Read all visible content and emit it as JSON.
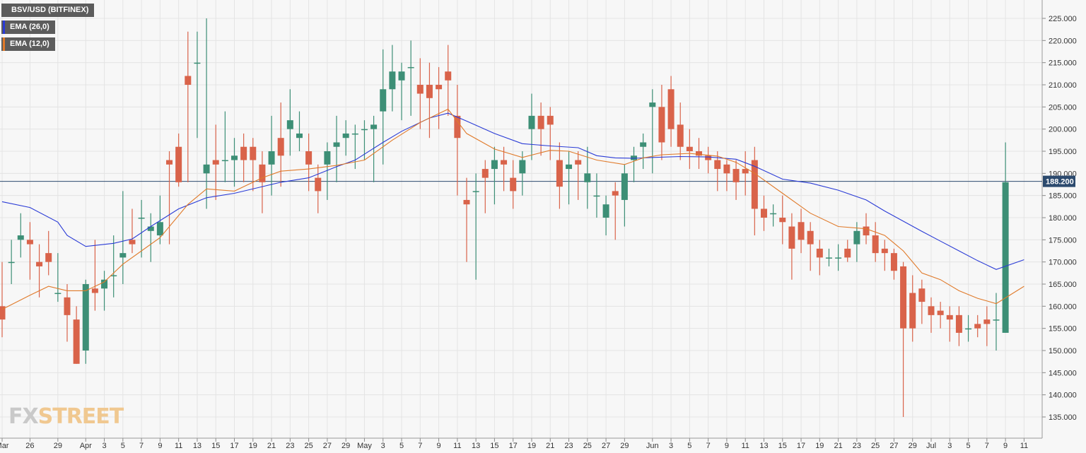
{
  "legend": {
    "title": "BSV/USD (BITFINEX)",
    "ema26": "EMA (26,0)",
    "ema12": "EMA (12,0)"
  },
  "watermark": {
    "part1": "FX",
    "part2": "STREET"
  },
  "colors": {
    "up": "#3d8f76",
    "down": "#d9634a",
    "ema26": "#2a3bd6",
    "ema12": "#e07a2a",
    "price_line": "#2c4a6e",
    "grid": "#e4e4e4",
    "background": "#f7f7f7"
  },
  "chart_data": {
    "type": "candlestick",
    "y_axis": {
      "ticks": [
        "135.000",
        "140.000",
        "145.000",
        "150.000",
        "155.000",
        "160.000",
        "165.000",
        "170.000",
        "175.000",
        "180.000",
        "185.000",
        "190.000",
        "195.000",
        "200.000",
        "205.000",
        "210.000",
        "215.000",
        "220.000",
        "225.000"
      ],
      "ylim": [
        134,
        229
      ]
    },
    "x_axis": {
      "ticks": [
        {
          "label": "Mar",
          "i": 0
        },
        {
          "label": "26",
          "i": 3
        },
        {
          "label": "29",
          "i": 6
        },
        {
          "label": "Apr",
          "i": 9
        },
        {
          "label": "3",
          "i": 11
        },
        {
          "label": "5",
          "i": 13
        },
        {
          "label": "7",
          "i": 15
        },
        {
          "label": "9",
          "i": 17
        },
        {
          "label": "11",
          "i": 19
        },
        {
          "label": "13",
          "i": 21
        },
        {
          "label": "15",
          "i": 23
        },
        {
          "label": "17",
          "i": 25
        },
        {
          "label": "19",
          "i": 27
        },
        {
          "label": "21",
          "i": 29
        },
        {
          "label": "23",
          "i": 31
        },
        {
          "label": "25",
          "i": 33
        },
        {
          "label": "27",
          "i": 35
        },
        {
          "label": "29",
          "i": 37
        },
        {
          "label": "May",
          "i": 39
        },
        {
          "label": "3",
          "i": 41
        },
        {
          "label": "5",
          "i": 43
        },
        {
          "label": "7",
          "i": 45
        },
        {
          "label": "9",
          "i": 47
        },
        {
          "label": "11",
          "i": 49
        },
        {
          "label": "13",
          "i": 51
        },
        {
          "label": "15",
          "i": 53
        },
        {
          "label": "17",
          "i": 55
        },
        {
          "label": "19",
          "i": 57
        },
        {
          "label": "21",
          "i": 59
        },
        {
          "label": "23",
          "i": 61
        },
        {
          "label": "25",
          "i": 63
        },
        {
          "label": "27",
          "i": 65
        },
        {
          "label": "29",
          "i": 67
        },
        {
          "label": "Jun",
          "i": 70
        },
        {
          "label": "3",
          "i": 72
        },
        {
          "label": "5",
          "i": 74
        },
        {
          "label": "7",
          "i": 76
        },
        {
          "label": "9",
          "i": 78
        },
        {
          "label": "11",
          "i": 80
        },
        {
          "label": "13",
          "i": 82
        },
        {
          "label": "15",
          "i": 84
        },
        {
          "label": "17",
          "i": 86
        },
        {
          "label": "19",
          "i": 88
        },
        {
          "label": "21",
          "i": 90
        },
        {
          "label": "23",
          "i": 92
        },
        {
          "label": "25",
          "i": 94
        },
        {
          "label": "27",
          "i": 96
        },
        {
          "label": "29",
          "i": 98
        },
        {
          "label": "Jul",
          "i": 100
        },
        {
          "label": "3",
          "i": 102
        },
        {
          "label": "5",
          "i": 104
        },
        {
          "label": "7",
          "i": 106
        },
        {
          "label": "9",
          "i": 108
        },
        {
          "label": "11",
          "i": 110
        }
      ]
    },
    "last_price": 188.2,
    "last_price_label": "188.200",
    "candles": [
      [
        160,
        170,
        153,
        157
      ],
      [
        170,
        175,
        165,
        170
      ],
      [
        175,
        181,
        171,
        176
      ],
      [
        175,
        179,
        166,
        174
      ],
      [
        170,
        174,
        162,
        169
      ],
      [
        172,
        177,
        167,
        170
      ],
      [
        163,
        172,
        161,
        163
      ],
      [
        162,
        165,
        152,
        158
      ],
      [
        157,
        160,
        147,
        147
      ],
      [
        150,
        166,
        147,
        165
      ],
      [
        164,
        175,
        159,
        163
      ],
      [
        164,
        168,
        159,
        166
      ],
      [
        167,
        176,
        162,
        167
      ],
      [
        171,
        186,
        165,
        172
      ],
      [
        175,
        182,
        172,
        174
      ],
      [
        180,
        184,
        171,
        180
      ],
      [
        177,
        181,
        170,
        178
      ],
      [
        176,
        185,
        174,
        179
      ],
      [
        193,
        195,
        174,
        192
      ],
      [
        196,
        199,
        187,
        188
      ],
      [
        212,
        222,
        188,
        210
      ],
      [
        215,
        222,
        198,
        215
      ],
      [
        190,
        225,
        182,
        192
      ],
      [
        193,
        201,
        184,
        192
      ],
      [
        193,
        204,
        188,
        193
      ],
      [
        193,
        198,
        187,
        194
      ],
      [
        196,
        199,
        188,
        193
      ],
      [
        196,
        198,
        186,
        193
      ],
      [
        192,
        195,
        181,
        188
      ],
      [
        192,
        203,
        185,
        195
      ],
      [
        198,
        206,
        187,
        194
      ],
      [
        200,
        209,
        194,
        202
      ],
      [
        198,
        204,
        195,
        199
      ],
      [
        195,
        199,
        186,
        192
      ],
      [
        189,
        192,
        181,
        186
      ],
      [
        192,
        197,
        184,
        195
      ],
      [
        196,
        203,
        188,
        197
      ],
      [
        198,
        202,
        194,
        199
      ],
      [
        199,
        201,
        191,
        199
      ],
      [
        200,
        202,
        193,
        200
      ],
      [
        200,
        203,
        188,
        201
      ],
      [
        204,
        218,
        192,
        209
      ],
      [
        209,
        219,
        204,
        213
      ],
      [
        211,
        215,
        202,
        213
      ],
      [
        214,
        220,
        203,
        214
      ],
      [
        210,
        216,
        200,
        208
      ],
      [
        210,
        215,
        198,
        207
      ],
      [
        210,
        214,
        200,
        209
      ],
      [
        213,
        219,
        203,
        211
      ],
      [
        203,
        210,
        185,
        198
      ],
      [
        184,
        189,
        170,
        183
      ],
      [
        186,
        190,
        166,
        186
      ],
      [
        191,
        193,
        181,
        189
      ],
      [
        191,
        196,
        183,
        193
      ],
      [
        193,
        196,
        186,
        192
      ],
      [
        189,
        193,
        182,
        186
      ],
      [
        190,
        195,
        185,
        193
      ],
      [
        200,
        208,
        193,
        203
      ],
      [
        203,
        206,
        194,
        200
      ],
      [
        203,
        205,
        193,
        201
      ],
      [
        193,
        197,
        182,
        187
      ],
      [
        191,
        195,
        183,
        192
      ],
      [
        193,
        195,
        184,
        192
      ],
      [
        188,
        196,
        182,
        190
      ],
      [
        185,
        190,
        180,
        185
      ],
      [
        180,
        185,
        176,
        183
      ],
      [
        186,
        188,
        175,
        185
      ],
      [
        184,
        192,
        178,
        190
      ],
      [
        193,
        196,
        188,
        194
      ],
      [
        196,
        199,
        191,
        197
      ],
      [
        205,
        209,
        190,
        206
      ],
      [
        205,
        210,
        193,
        197
      ],
      [
        209,
        212,
        196,
        200
      ],
      [
        201,
        206,
        193,
        196
      ],
      [
        196,
        200,
        191,
        195
      ],
      [
        195,
        198,
        191,
        194
      ],
      [
        194,
        196,
        190,
        193
      ],
      [
        193,
        195,
        186,
        191
      ],
      [
        192,
        193,
        186,
        190
      ],
      [
        191,
        193,
        184,
        188
      ],
      [
        191,
        195,
        185,
        190
      ],
      [
        193,
        196,
        176,
        182
      ],
      [
        182,
        185,
        177,
        180
      ],
      [
        181,
        183,
        178,
        181
      ],
      [
        180,
        185,
        174,
        179
      ],
      [
        178,
        181,
        166,
        173
      ],
      [
        179,
        182,
        172,
        175
      ],
      [
        177,
        179,
        168,
        174
      ],
      [
        173,
        175,
        167,
        171
      ],
      [
        171,
        173,
        169,
        171
      ],
      [
        171,
        174,
        168,
        171
      ],
      [
        173,
        175,
        170,
        171
      ],
      [
        174,
        179,
        170,
        177
      ],
      [
        178,
        181,
        174,
        176
      ],
      [
        176,
        179,
        170,
        172
      ],
      [
        173,
        175,
        168,
        172
      ],
      [
        172,
        173,
        166,
        168
      ],
      [
        169,
        170,
        135,
        155
      ],
      [
        163,
        167,
        152,
        155
      ],
      [
        164,
        166,
        156,
        161
      ],
      [
        160,
        162,
        154,
        158
      ],
      [
        159,
        161,
        155,
        158
      ],
      [
        158,
        160,
        152,
        157
      ],
      [
        158,
        160,
        151,
        154
      ],
      [
        155,
        158,
        152,
        155
      ],
      [
        156,
        158,
        153,
        155
      ],
      [
        157,
        160,
        151,
        156
      ],
      [
        157,
        163,
        150,
        157
      ],
      [
        154,
        197,
        154,
        188
      ]
    ],
    "ema26": [
      [
        0,
        183.6
      ],
      [
        3,
        182.3
      ],
      [
        6,
        179.0
      ],
      [
        7,
        176.0
      ],
      [
        9,
        173.5
      ],
      [
        12,
        174.2
      ],
      [
        14,
        175.2
      ],
      [
        16,
        178.0
      ],
      [
        19,
        182.0
      ],
      [
        22,
        184.5
      ],
      [
        25,
        185.5
      ],
      [
        28,
        187.0
      ],
      [
        30,
        188.0
      ],
      [
        33,
        189.0
      ],
      [
        36,
        191.5
      ],
      [
        38,
        193.0
      ],
      [
        41,
        197.0
      ],
      [
        43,
        199.5
      ],
      [
        46,
        202.5
      ],
      [
        48,
        203.6
      ],
      [
        50,
        201.8
      ],
      [
        53,
        199.0
      ],
      [
        56,
        196.7
      ],
      [
        59,
        196.2
      ],
      [
        62,
        195.8
      ],
      [
        64,
        194.0
      ],
      [
        66,
        193.5
      ],
      [
        68,
        193.4
      ],
      [
        70,
        193.6
      ],
      [
        73,
        193.8
      ],
      [
        76,
        193.7
      ],
      [
        79,
        193.2
      ],
      [
        81,
        191.6
      ],
      [
        84,
        188.7
      ],
      [
        87,
        187.8
      ],
      [
        90,
        186.2
      ],
      [
        93,
        184.0
      ],
      [
        95,
        181.5
      ],
      [
        97,
        179.2
      ],
      [
        99,
        176.9
      ],
      [
        101,
        174.7
      ],
      [
        103,
        172.5
      ],
      [
        105,
        170.3
      ],
      [
        107,
        168.3
      ],
      [
        110,
        170.5
      ]
    ],
    "ema12": [
      [
        0,
        159.3
      ],
      [
        3,
        162.5
      ],
      [
        5,
        164.5
      ],
      [
        7,
        163.5
      ],
      [
        9,
        163.5
      ],
      [
        11,
        165.5
      ],
      [
        13,
        169.5
      ],
      [
        15,
        172.5
      ],
      [
        17,
        175.5
      ],
      [
        20,
        183.0
      ],
      [
        22,
        186.5
      ],
      [
        25,
        186.0
      ],
      [
        28,
        189.0
      ],
      [
        30,
        190.5
      ],
      [
        33,
        191.0
      ],
      [
        36,
        191.8
      ],
      [
        39,
        193.0
      ],
      [
        42,
        197.5
      ],
      [
        45,
        201.5
      ],
      [
        48,
        204.5
      ],
      [
        50,
        199.0
      ],
      [
        53,
        195.5
      ],
      [
        56,
        193.6
      ],
      [
        59,
        195.2
      ],
      [
        61,
        195.0
      ],
      [
        64,
        193.0
      ],
      [
        67,
        192.0
      ],
      [
        69,
        193.5
      ],
      [
        71,
        194.2
      ],
      [
        74,
        194.5
      ],
      [
        77,
        193.9
      ],
      [
        79,
        192.5
      ],
      [
        81,
        190.0
      ],
      [
        84,
        185.5
      ],
      [
        87,
        181.0
      ],
      [
        90,
        178.0
      ],
      [
        93,
        177.5
      ],
      [
        95,
        176.0
      ],
      [
        97,
        172.5
      ],
      [
        99,
        167.5
      ],
      [
        101,
        166.0
      ],
      [
        103,
        163.5
      ],
      [
        105,
        161.8
      ],
      [
        107,
        160.6
      ],
      [
        110,
        164.5
      ]
    ]
  }
}
